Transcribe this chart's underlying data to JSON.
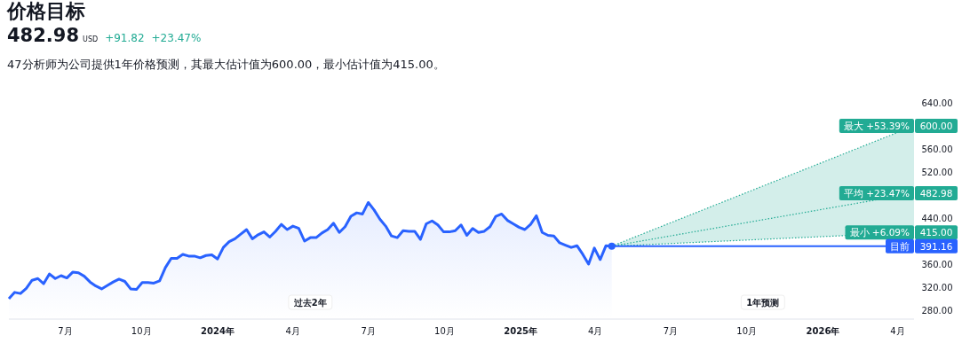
{
  "chart_data": {
    "type": "line",
    "title": "价格目标",
    "annotations": [
      "482.98",
      "USD",
      "+91.82",
      "+23.47%",
      "47分析师为公司提供1年价格预测，其最大估计值为600.00，最小估计值为415.00。",
      "过去2年",
      "1年预测"
    ],
    "xticks": [
      {
        "value": "2023-07-01",
        "label": "7月"
      },
      {
        "value": "2023-10-01",
        "label": "10月"
      },
      {
        "value": "2024-01-01",
        "label": "2024年"
      },
      {
        "value": "2024-04-01",
        "label": "4月"
      },
      {
        "value": "2024-07-01",
        "label": "7月"
      },
      {
        "value": "2024-10-01",
        "label": "10月"
      },
      {
        "value": "2025-01-01",
        "label": "2025年"
      },
      {
        "value": "2025-04-01",
        "label": "4月"
      },
      {
        "value": "2025-07-01",
        "label": "7月"
      },
      {
        "value": "2025-10-01",
        "label": "10月"
      },
      {
        "value": "2026-01-01",
        "label": "2026年"
      },
      {
        "value": "2026-04-01",
        "label": "4月"
      }
    ],
    "xlim": [
      "2023-04-24",
      "2026-04-21"
    ],
    "legend": "right",
    "ylim": [
      280,
      640
    ],
    "yticks": [
      {
        "value": 280,
        "label": "280.00"
      },
      {
        "value": 320,
        "label": "320.00"
      },
      {
        "value": 360,
        "label": "360.00"
      },
      {
        "value": 440,
        "label": "440.00"
      },
      {
        "value": 520,
        "label": "520.00"
      },
      {
        "value": 560,
        "label": "560.00"
      },
      {
        "value": 640,
        "label": "640.00"
      }
    ],
    "series": [
      {
        "type": "area",
        "color": "#2962ff",
        "x": [
          "2023-04-24",
          "2023-05-01",
          "2023-05-08",
          "2023-05-15",
          "2023-05-22",
          "2023-05-29",
          "2023-06-05",
          "2023-06-12",
          "2023-06-19",
          "2023-06-26",
          "2023-07-03",
          "2023-07-10",
          "2023-07-17",
          "2023-07-24",
          "2023-07-31",
          "2023-08-07",
          "2023-08-14",
          "2023-08-21",
          "2023-08-28",
          "2023-09-04",
          "2023-09-11",
          "2023-09-18",
          "2023-09-25",
          "2023-10-02",
          "2023-10-09",
          "2023-10-16",
          "2023-10-23",
          "2023-10-30",
          "2023-11-06",
          "2023-11-13",
          "2023-11-20",
          "2023-11-27",
          "2023-12-04",
          "2023-12-11",
          "2023-12-18",
          "2023-12-25",
          "2024-01-01",
          "2024-01-08",
          "2024-01-15",
          "2024-01-22",
          "2024-01-29",
          "2024-02-05",
          "2024-02-12",
          "2024-02-19",
          "2024-02-26",
          "2024-03-04",
          "2024-03-11",
          "2024-03-18",
          "2024-03-25",
          "2024-04-01",
          "2024-04-08",
          "2024-04-15",
          "2024-04-22",
          "2024-04-29",
          "2024-05-06",
          "2024-05-13",
          "2024-05-20",
          "2024-05-27",
          "2024-06-03",
          "2024-06-10",
          "2024-06-17",
          "2024-06-24",
          "2024-07-01",
          "2024-07-08",
          "2024-07-15",
          "2024-07-22",
          "2024-07-29",
          "2024-08-05",
          "2024-08-12",
          "2024-08-19",
          "2024-08-26",
          "2024-09-02",
          "2024-09-09",
          "2024-09-16",
          "2024-09-23",
          "2024-09-30",
          "2024-10-07",
          "2024-10-14",
          "2024-10-21",
          "2024-10-28",
          "2024-11-04",
          "2024-11-11",
          "2024-11-18",
          "2024-11-25",
          "2024-12-02",
          "2024-12-09",
          "2024-12-16",
          "2024-12-23",
          "2024-12-30",
          "2025-01-06",
          "2025-01-13",
          "2025-01-20",
          "2025-01-27",
          "2025-02-03",
          "2025-02-10",
          "2025-02-17",
          "2025-02-24",
          "2025-03-03",
          "2025-03-10",
          "2025-03-17",
          "2025-03-24",
          "2025-03-31",
          "2025-04-07",
          "2025-04-14",
          "2025-04-21"
        ],
        "values": [
          300,
          311,
          309,
          318,
          332,
          335,
          326,
          343,
          335,
          340,
          336,
          346,
          345,
          339,
          329,
          322,
          317,
          323,
          329,
          334,
          330,
          317,
          316,
          328,
          328,
          327,
          331,
          354,
          370,
          370,
          377,
          374,
          374,
          371,
          375,
          376,
          369,
          389,
          399,
          404,
          412,
          420,
          404,
          411,
          416,
          407,
          417,
          429,
          420,
          426,
          422,
          400,
          406,
          406,
          414,
          420,
          431,
          415,
          425,
          443,
          449,
          447,
          467,
          454,
          438,
          426,
          409,
          406,
          418,
          417,
          417,
          403,
          430,
          435,
          428,
          416,
          416,
          418,
          428,
          410,
          422,
          415,
          417,
          425,
          443,
          447,
          436,
          430,
          424,
          420,
          429,
          444,
          415,
          410,
          409,
          397,
          393,
          389,
          392,
          377,
          360,
          388,
          368,
          392,
          391.16
        ]
      },
      {
        "name": "最大 +53.39%",
        "color": "#22ab94",
        "line_style": "dotted",
        "x": [
          "2025-04-21",
          "2026-04-21"
        ],
        "values": [
          391.16,
          600
        ],
        "value_labels": [
          null,
          "600.00"
        ]
      },
      {
        "name": "平均 +23.47%",
        "color": "#22ab94",
        "line_style": "dotted",
        "x": [
          "2025-04-21",
          "2026-04-21"
        ],
        "values": [
          391.16,
          482.98
        ],
        "value_labels": [
          null,
          "482.98"
        ],
        "lower": [
          391.16,
          415
        ],
        "upper": [
          391.16,
          600
        ]
      },
      {
        "name": "最小 +6.09%",
        "color": "#22ab94",
        "line_style": "dotted",
        "x": [
          "2025-04-21",
          "2026-04-21"
        ],
        "values": [
          391.16,
          415
        ],
        "value_labels": [
          null,
          "415.00"
        ]
      },
      {
        "name": "目前",
        "color": "#2962ff",
        "line_style": "solid",
        "x": [
          "2025-04-21",
          "2026-04-21"
        ],
        "values": [
          391.16,
          391.16
        ],
        "value_labels": [
          null,
          "391.16"
        ]
      },
      {
        "type": "scatter",
        "color": "#2962ff",
        "marker": "circle",
        "x": [
          "2025-04-21"
        ],
        "values": [
          391.16
        ]
      }
    ]
  }
}
